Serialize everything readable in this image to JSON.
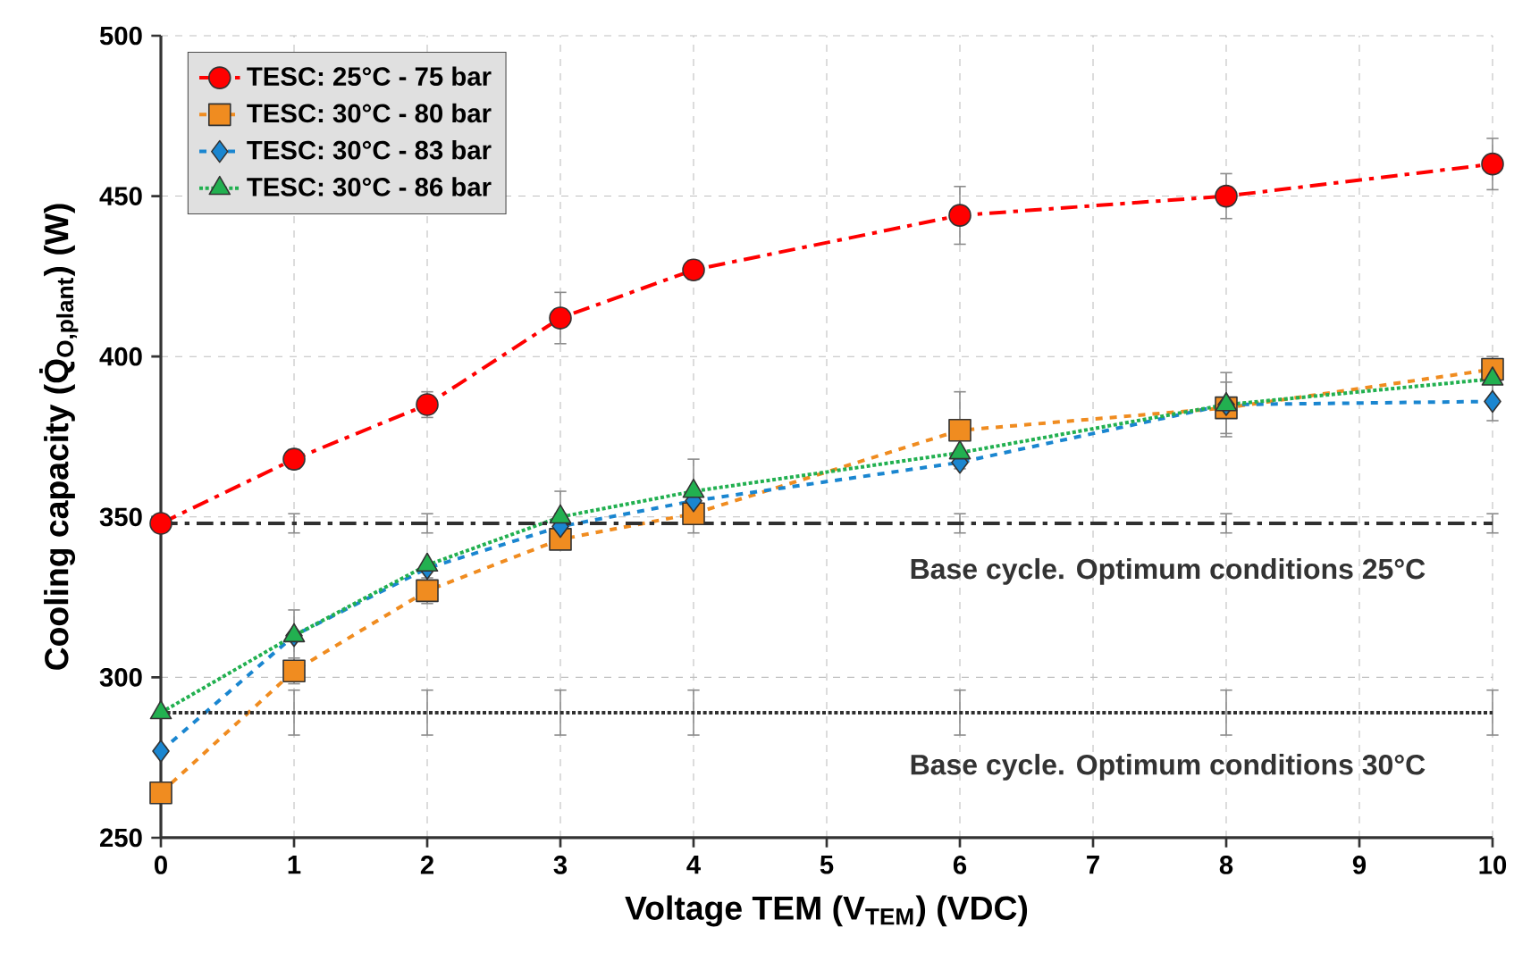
{
  "chart_data": {
    "type": "line",
    "xlabel": "Voltage TEM (V$_{TEM}$) (VDC)",
    "ylabel": "Cooling capacity (Q̇$_{O,plant}$) (W)",
    "x": [
      0,
      1,
      2,
      3,
      4,
      6,
      8,
      10
    ],
    "series": [
      {
        "name": "TESC: 25°C - 75 bar",
        "color": "#ff0000",
        "marker": "circle",
        "line_style": "dashdot",
        "values": [
          348,
          368,
          385,
          412,
          427,
          444,
          450,
          460
        ],
        "errors": [
          null,
          3,
          4,
          8,
          3,
          9,
          7,
          8
        ]
      },
      {
        "name": "TESC: 30°C - 80 bar",
        "color": "#f08c20",
        "marker": "square",
        "line_style": "dashed",
        "values": [
          264,
          302,
          327,
          343,
          351,
          377,
          384,
          396
        ],
        "errors": [
          null,
          4,
          4,
          null,
          null,
          12,
          8,
          4
        ]
      },
      {
        "name": "TESC: 30°C - 83 bar",
        "color": "#1a86d0",
        "marker": "diamond",
        "line_style": "dashed",
        "values": [
          277,
          313,
          334,
          347,
          355,
          367,
          385,
          386
        ],
        "errors": [
          null,
          null,
          null,
          null,
          null,
          null,
          null,
          6
        ]
      },
      {
        "name": "TESC: 30°C - 86 bar",
        "color": "#22b050",
        "marker": "triangle",
        "line_style": "dotted",
        "values": [
          289,
          313,
          335,
          350,
          358,
          370,
          385,
          393
        ],
        "errors": [
          null,
          8,
          null,
          8,
          10,
          null,
          10,
          null
        ]
      },
      {
        "color": "#303030",
        "marker": "none",
        "line_style": "dashdot",
        "values": [
          348,
          348,
          348,
          348,
          348,
          348,
          348,
          348
        ],
        "errors": [
          null,
          3,
          3,
          3,
          3,
          3,
          3,
          3
        ]
      },
      {
        "color": "#303030",
        "marker": "none",
        "line_style": "dotted",
        "values": [
          289,
          289,
          289,
          289,
          289,
          289,
          289,
          289
        ],
        "errors": [
          null,
          7,
          7,
          7,
          7,
          7,
          7,
          7
        ]
      }
    ],
    "xlim": [
      0,
      10
    ],
    "xticks": [
      0,
      1,
      2,
      3,
      4,
      5,
      6,
      7,
      8,
      9,
      10
    ],
    "ylim": [
      250,
      500
    ],
    "yticks": [
      250,
      300,
      350,
      400,
      450,
      500
    ],
    "grid": true,
    "legend": "top left",
    "annotations": [
      "Base cycle. Optimum conditions 25°C",
      "Base cycle. Optimum conditions 30°C"
    ]
  }
}
